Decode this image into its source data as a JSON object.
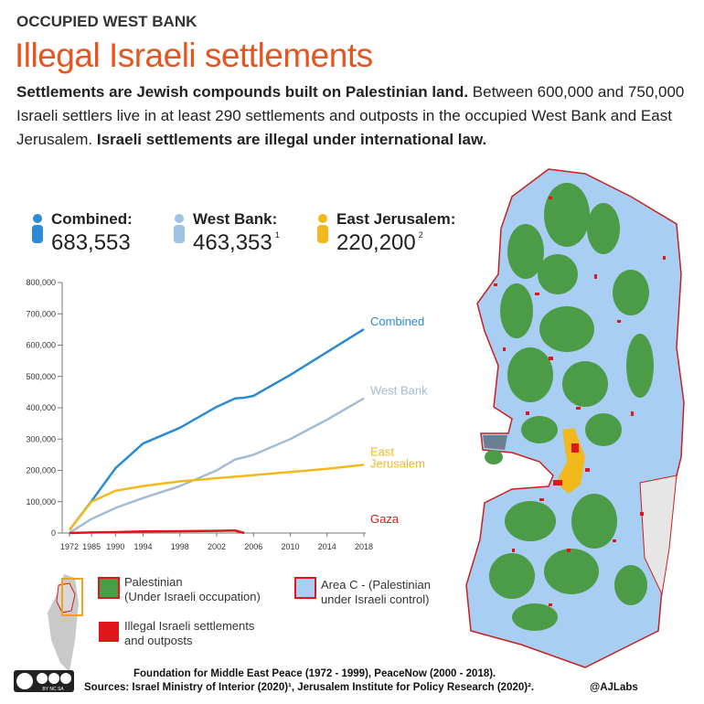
{
  "header": {
    "kicker": "OCCUPIED WEST BANK",
    "title": "Illegal Israeli settlements",
    "intro_bold_1": "Settlements are Jewish compounds built on Palestinian land.",
    "intro_text": "Between 600,000 and 750,000 Israeli settlers live in at least 290 settlements and outposts in the occupied West Bank and East Jerusalem.",
    "intro_bold_2": "Israeli settlements are illegal under international law."
  },
  "stats": [
    {
      "label": "Combined:",
      "value": "683,553",
      "color": "#2a8bd2"
    },
    {
      "label": "West Bank:",
      "value": "463,353",
      "note": "1",
      "color": "#9fc3e2"
    },
    {
      "label": "East Jerusalem:",
      "value": "220,200",
      "note": "2",
      "color": "#f2b91d"
    }
  ],
  "chart_data": {
    "type": "line",
    "x": [
      1972,
      1985,
      1990,
      1994,
      1998,
      2002,
      2004,
      2005,
      2006,
      2010,
      2014,
      2018
    ],
    "series": [
      {
        "name": "Combined",
        "color": "#2a8bd2",
        "values": [
          10000,
          102000,
          207000,
          286000,
          336000,
          403000,
          430000,
          432000,
          438000,
          505000,
          578000,
          651000
        ]
      },
      {
        "name": "West Bank",
        "color": "#a3bcd4",
        "values": [
          1000,
          45000,
          80000,
          112000,
          150000,
          200000,
          235000,
          242000,
          250000,
          300000,
          362000,
          430000
        ]
      },
      {
        "name": "East Jerusalem",
        "color": "#f2b91d",
        "values": [
          10000,
          100000,
          135000,
          150000,
          165000,
          175000,
          180000,
          182000,
          185000,
          195000,
          205000,
          218000
        ]
      },
      {
        "name": "Gaza",
        "color": "#e0161a",
        "values": [
          0,
          2000,
          3000,
          5000,
          6000,
          7000,
          8000,
          0,
          null,
          null,
          null,
          null
        ]
      }
    ],
    "ylim": [
      0,
      800000
    ],
    "yticks": [
      0,
      {
        "value": 100000,
        "label": "100,000"
      },
      {
        "value": 200000,
        "label": "200,000"
      },
      {
        "value": 300000,
        "label": "300,000"
      },
      {
        "value": 400000,
        "label": "400,000"
      },
      {
        "value": 500000,
        "label": "500,000"
      },
      {
        "value": 600000,
        "label": "600,000"
      },
      {
        "value": 700000,
        "label": "700,000"
      },
      {
        "value": 800000,
        "label": "800,000"
      }
    ],
    "xlim": [
      1972,
      2018
    ],
    "xticks": [
      1972,
      1985,
      1990,
      1994,
      1998,
      2002,
      2006,
      2010,
      2014,
      2018
    ],
    "grid": false
  },
  "legend": {
    "palestinian_1": "Palestinian",
    "palestinian_2": "(Under Israeli occupation)",
    "area_c_1": "Area C - (Palestinian",
    "area_c_2": "under Israeli control)",
    "settlements_1": "Illegal Israeli settlements",
    "settlements_2": "and outposts"
  },
  "footer": {
    "license": "BY NC SA",
    "line_1": "Foundation for Middle East Peace (1972 - 1999), PeaceNow (2000 - 2018).",
    "line_2": "Sources: Israel Ministry of Interior (2020)¹, Jerusalem Institute for Policy Research (2020)².",
    "credit": "@AJLabs"
  }
}
